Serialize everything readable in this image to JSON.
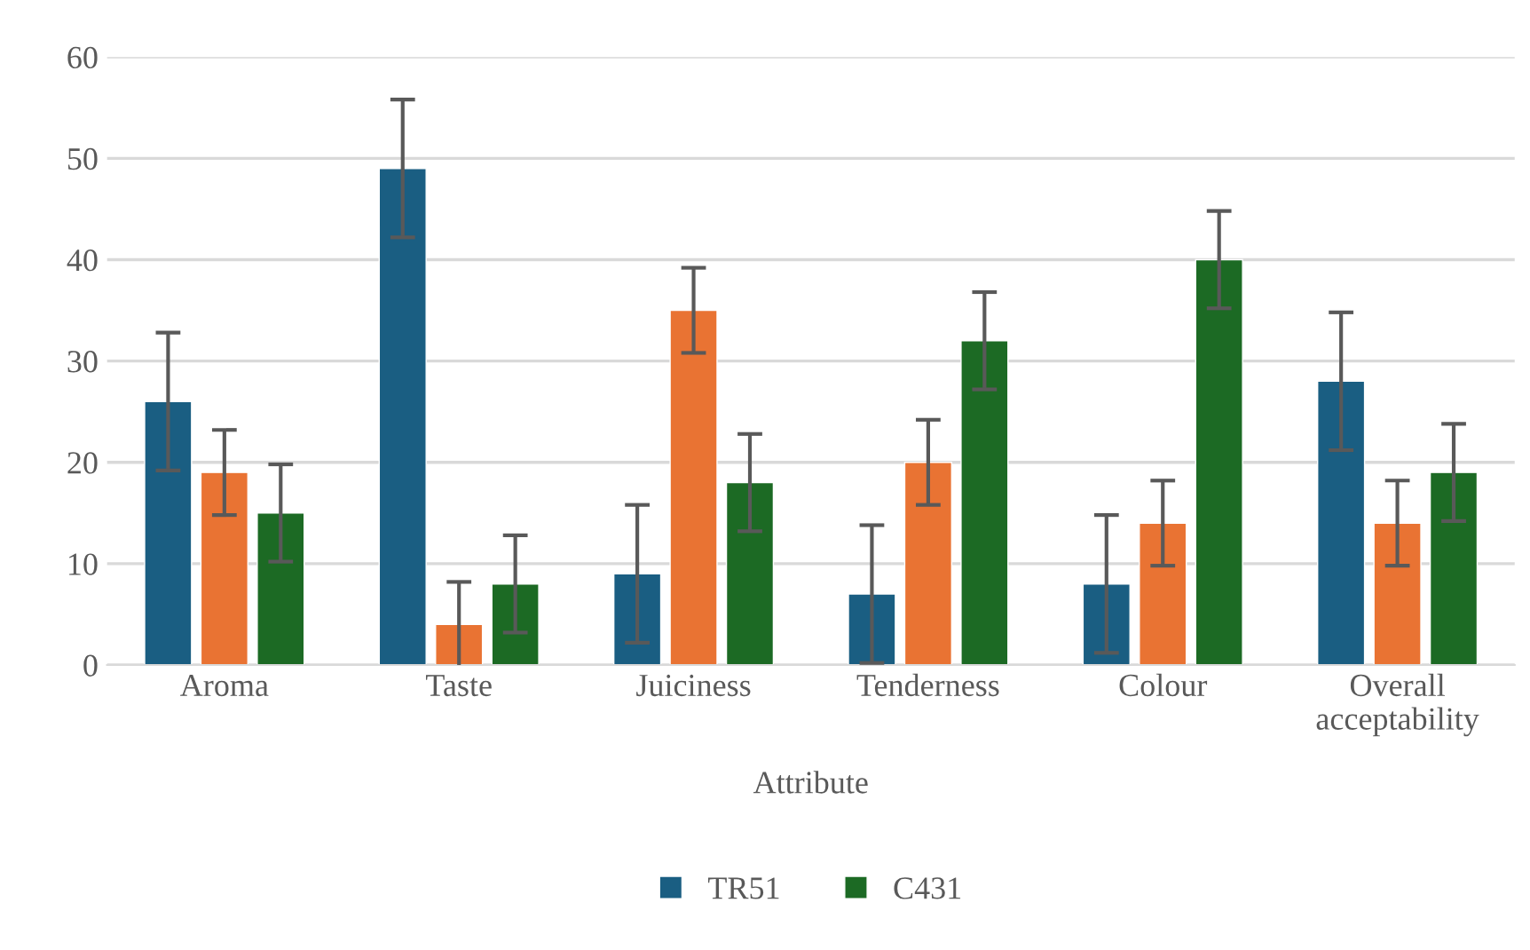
{
  "chart_data": {
    "type": "bar",
    "xlabel": "Attribute",
    "categories": [
      "Aroma",
      "Taste",
      "Juiciness",
      "Tenderness",
      "Colour",
      "Overall\nacceptability"
    ],
    "series": [
      {
        "name": "TR51",
        "color": "#1a5e82",
        "values": [
          26,
          49,
          9,
          7,
          8,
          28
        ],
        "errors": [
          6.8,
          6.8,
          6.8,
          6.8,
          6.8,
          6.8
        ]
      },
      {
        "color": "#e97333",
        "values": [
          19,
          4,
          35,
          20,
          14,
          14
        ],
        "errors": [
          4.2,
          4.2,
          4.2,
          4.2,
          4.2,
          4.2
        ]
      },
      {
        "name": "C431",
        "color": "#1c6a24",
        "values": [
          15,
          8,
          18,
          32,
          40,
          19
        ],
        "errors": [
          4.8,
          4.8,
          4.8,
          4.8,
          4.8,
          4.8
        ]
      }
    ],
    "ylim": [
      0,
      60
    ],
    "yticks": [
      0,
      10,
      20,
      30,
      40,
      50,
      60
    ],
    "grid": "y",
    "legend": "bottom"
  }
}
